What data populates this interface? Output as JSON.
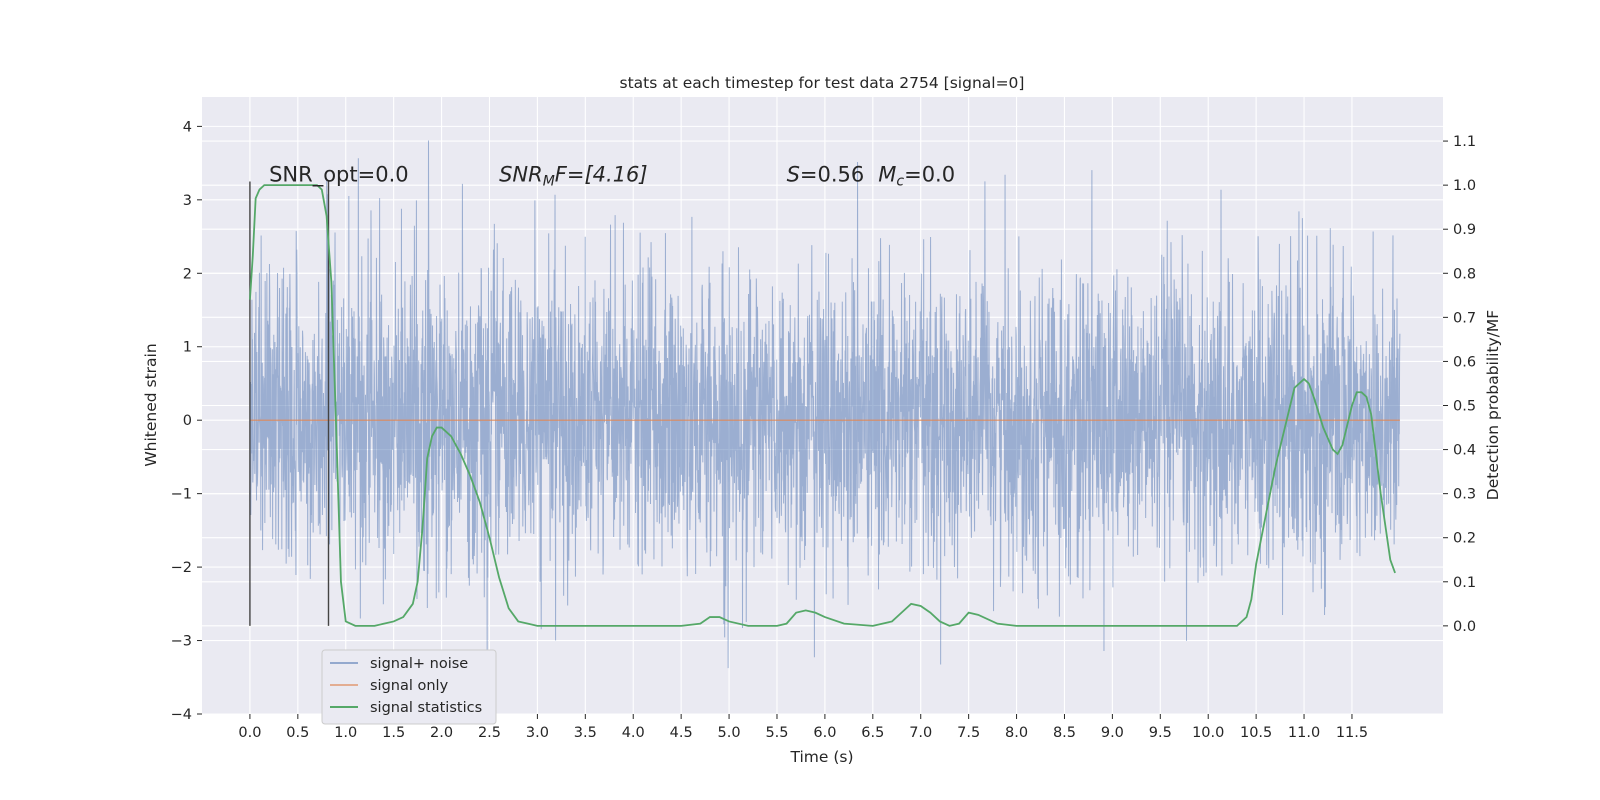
{
  "chart_data": {
    "type": "line",
    "title": "stats at each timestep for test data 2754 [signal=0]",
    "xlabel": "Time (s)",
    "ylabel": "Whitened strain",
    "y2label": "Detection probability/MF",
    "xlim": [
      -0.5,
      12.45
    ],
    "ylim": [
      -4.0,
      4.4
    ],
    "y2lim": [
      -0.2,
      1.2
    ],
    "xticks": [
      0.0,
      0.5,
      1.0,
      1.5,
      2.0,
      2.5,
      3.0,
      3.5,
      4.0,
      4.5,
      5.0,
      5.5,
      6.0,
      6.5,
      7.0,
      7.5,
      8.0,
      8.5,
      9.0,
      9.5,
      10.0,
      10.5,
      11.0,
      11.5
    ],
    "xtick_labels": [
      "0.0",
      "0.5",
      "1.0",
      "1.5",
      "2.0",
      "2.5",
      "3.0",
      "3.5",
      "4.0",
      "4.5",
      "5.0",
      "5.5",
      "6.0",
      "6.5",
      "7.0",
      "7.5",
      "8.0",
      "8.5",
      "9.0",
      "9.5",
      "10.0",
      "10.5",
      "11.0",
      "11.5"
    ],
    "yticks": [
      -4,
      -3,
      -2,
      -1,
      0,
      1,
      2,
      3,
      4
    ],
    "ytick_labels": [
      "−4",
      "−3",
      "−2",
      "−1",
      "0",
      "1",
      "2",
      "3",
      "4"
    ],
    "y2ticks": [
      0.0,
      0.1,
      0.2,
      0.3,
      0.4,
      0.5,
      0.6,
      0.7,
      0.8,
      0.9,
      1.0,
      1.1
    ],
    "y2tick_labels": [
      "0.0",
      "0.1",
      "0.2",
      "0.3",
      "0.4",
      "0.5",
      "0.6",
      "0.7",
      "0.8",
      "0.9",
      "1.0",
      "1.1"
    ],
    "grid": true,
    "legend_placement": "lower-left",
    "series": [
      {
        "name": "signal+ noise",
        "color": "#4c72b0",
        "kind": "noise",
        "x_range": [
          0.0,
          12.0
        ],
        "std": 1.0,
        "y_extent": [
          -3.6,
          4.1
        ]
      },
      {
        "name": "signal only",
        "color": "#dd8452",
        "kind": "constant",
        "x_range": [
          0.0,
          12.0
        ],
        "y": 0.0
      },
      {
        "name": "signal statistics",
        "color": "#55a868",
        "axis": "right",
        "x": [
          0.0,
          0.03,
          0.06,
          0.1,
          0.15,
          0.2,
          0.3,
          0.4,
          0.5,
          0.6,
          0.7,
          0.75,
          0.8,
          0.85,
          0.9,
          0.95,
          1.0,
          1.1,
          1.2,
          1.3,
          1.4,
          1.5,
          1.6,
          1.7,
          1.75,
          1.8,
          1.85,
          1.9,
          1.95,
          2.0,
          2.05,
          2.1,
          2.2,
          2.3,
          2.4,
          2.5,
          2.6,
          2.7,
          2.8,
          2.9,
          3.0,
          3.2,
          3.5,
          4.0,
          4.5,
          4.7,
          4.8,
          4.9,
          5.0,
          5.2,
          5.5,
          5.6,
          5.7,
          5.8,
          5.9,
          6.0,
          6.2,
          6.5,
          6.7,
          6.8,
          6.9,
          7.0,
          7.1,
          7.2,
          7.3,
          7.4,
          7.5,
          7.6,
          7.8,
          8.0,
          8.5,
          9.0,
          9.5,
          10.0,
          10.3,
          10.4,
          10.45,
          10.5,
          10.6,
          10.7,
          10.8,
          10.9,
          11.0,
          11.05,
          11.1,
          11.2,
          11.3,
          11.35,
          11.4,
          11.5,
          11.55,
          11.6,
          11.65,
          11.7,
          11.8,
          11.9,
          11.95
        ],
        "values": [
          0.74,
          0.84,
          0.97,
          0.99,
          1.0,
          1.0,
          1.0,
          1.0,
          1.0,
          1.0,
          1.0,
          0.99,
          0.93,
          0.78,
          0.45,
          0.1,
          0.01,
          0.0,
          0.0,
          0.0,
          0.005,
          0.01,
          0.02,
          0.05,
          0.1,
          0.22,
          0.38,
          0.43,
          0.45,
          0.45,
          0.44,
          0.43,
          0.39,
          0.34,
          0.28,
          0.2,
          0.11,
          0.04,
          0.01,
          0.005,
          0.0,
          0.0,
          0.0,
          0.0,
          0.0,
          0.005,
          0.02,
          0.02,
          0.01,
          0.0,
          0.0,
          0.005,
          0.03,
          0.035,
          0.03,
          0.02,
          0.005,
          0.0,
          0.01,
          0.03,
          0.05,
          0.045,
          0.03,
          0.01,
          0.0,
          0.005,
          0.03,
          0.025,
          0.005,
          0.0,
          0.0,
          0.0,
          0.0,
          0.0,
          0.0,
          0.02,
          0.06,
          0.14,
          0.25,
          0.36,
          0.45,
          0.54,
          0.56,
          0.55,
          0.52,
          0.45,
          0.4,
          0.39,
          0.41,
          0.5,
          0.53,
          0.53,
          0.52,
          0.48,
          0.3,
          0.15,
          0.12
        ]
      }
    ],
    "vlines": [
      {
        "x": 0.0,
        "y": [
          -2.8,
          3.25
        ]
      },
      {
        "x": 0.82,
        "y": [
          -2.8,
          3.25
        ]
      }
    ],
    "annotations": [
      {
        "id": "snr-opt",
        "text": "SNR_opt=0.0",
        "x": 0.2,
        "y": 3.25
      },
      {
        "id": "snr-mf",
        "prefix": "SNR",
        "sub": "M",
        "suffix": "F=[4.16]",
        "x": 2.6,
        "y": 3.25
      },
      {
        "id": "s-mc",
        "s_label": "S",
        "s_value": "=0.56",
        "m_label": "M",
        "m_sub": "c",
        "m_value": "=0.0",
        "x": 5.6,
        "y": 3.25
      }
    ]
  }
}
